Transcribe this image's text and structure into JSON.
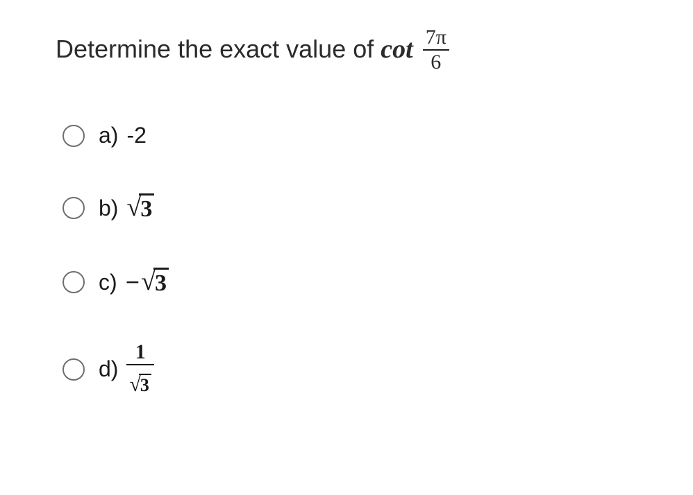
{
  "question": {
    "prefix": "Determine the exact value of ",
    "func": "cot",
    "frac_num": "7π",
    "frac_den": "6"
  },
  "options": {
    "a": {
      "label": "a)",
      "type": "plain",
      "value": "-2"
    },
    "b": {
      "label": "b)",
      "type": "sqrt",
      "sign": "",
      "radicand": "3"
    },
    "c": {
      "label": "c)",
      "type": "sqrt",
      "sign": "−",
      "radicand": "3"
    },
    "d": {
      "label": "d)",
      "type": "frac",
      "num": "1",
      "den_radicand": "3"
    }
  },
  "style": {
    "text_color": "#1a1a1a",
    "radio_border": "#6e6e6e",
    "background": "#ffffff",
    "question_fontsize": 36,
    "option_label_fontsize": 32,
    "option_value_fontsize": 36
  }
}
